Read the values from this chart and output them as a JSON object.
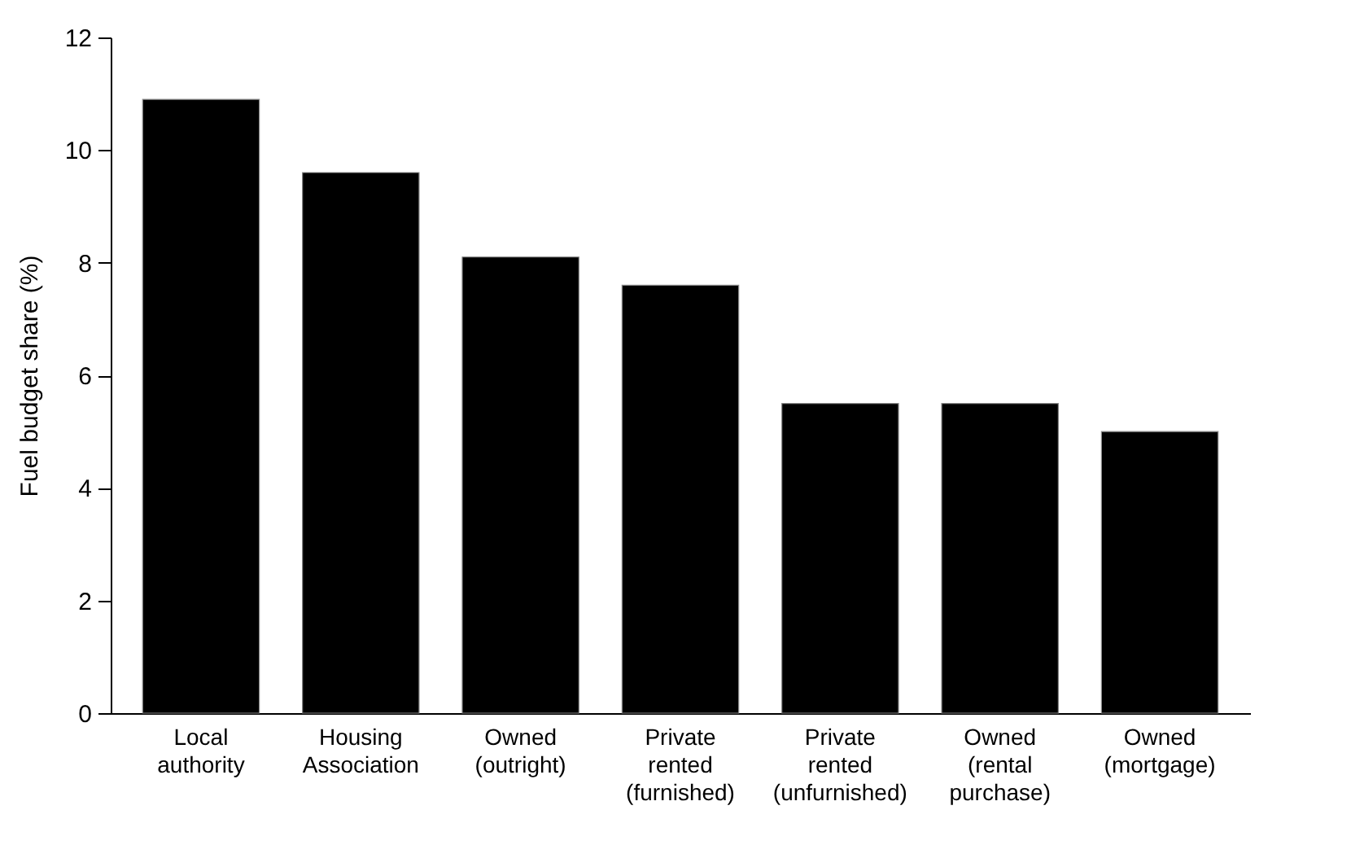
{
  "chart_data": {
    "type": "bar",
    "ylabel": "Fuel budget share (%)",
    "categories": [
      "Local authority",
      "Housing Association",
      "Owned (outright)",
      "Private rented (furnished)",
      "Private rented (unfurnished)",
      "Owned (rental purchase)",
      "Owned (mortgage)"
    ],
    "values": [
      10.9,
      9.6,
      8.1,
      7.6,
      5.5,
      5.5,
      5.0
    ],
    "color": "#000000",
    "ylim": [
      0,
      12
    ],
    "yticks": [
      0,
      2,
      4,
      6,
      8,
      10,
      12
    ],
    "grid": false
  }
}
